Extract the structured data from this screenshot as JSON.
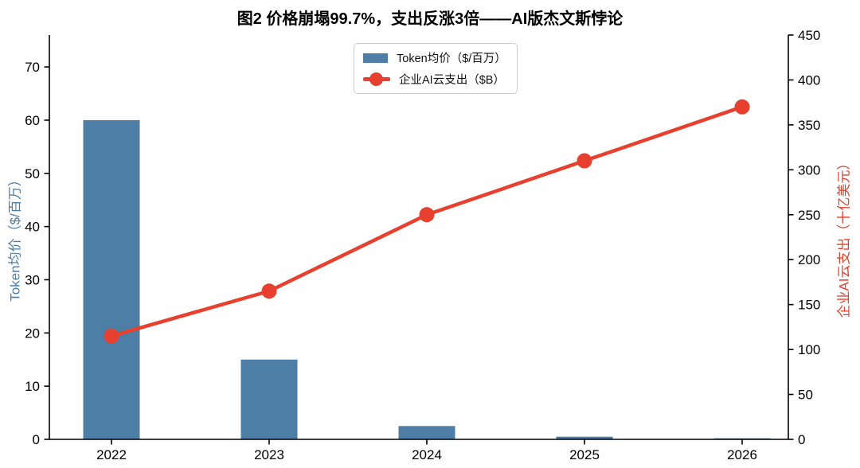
{
  "title": "图2 价格崩塌99.7%，支出反涨3倍——AI版杰文斯悖论",
  "colors": {
    "bar_blue": "#4c7ea6",
    "line_red": "#e8402f",
    "axis": "#000000",
    "tick_label": "#000000",
    "legend_border": "#cccccc",
    "background": "#ffffff"
  },
  "chart_data": {
    "type": "bar+line (dual axis)",
    "title": "图2 价格崩塌99.7%，支出反涨3倍——AI版杰文斯悖论",
    "categories": [
      "2022",
      "2023",
      "2024",
      "2025",
      "2026"
    ],
    "series": [
      {
        "name": "Token均价（$/百万）",
        "type": "bar",
        "axis": "left",
        "color": "#4c7ea6",
        "values": [
          60,
          15,
          2.5,
          0.5,
          0.2
        ]
      },
      {
        "name": "企业AI云支出（$B）",
        "type": "line",
        "axis": "right",
        "color": "#e8402f",
        "values": [
          115,
          165,
          250,
          310,
          370
        ]
      }
    ],
    "xlabel": "",
    "ylabel_left": "Token均价（$/百万）",
    "ylabel_right": "企业AI云支出（十亿美元）",
    "ylim_left": [
      0,
      76
    ],
    "ylim_right": [
      0,
      450
    ],
    "yticks_left": [
      0,
      10,
      20,
      30,
      40,
      50,
      60,
      70
    ],
    "yticks_right": [
      0,
      50,
      100,
      150,
      200,
      250,
      300,
      350,
      400,
      450
    ],
    "grid": false,
    "legend_position": "upper center"
  }
}
